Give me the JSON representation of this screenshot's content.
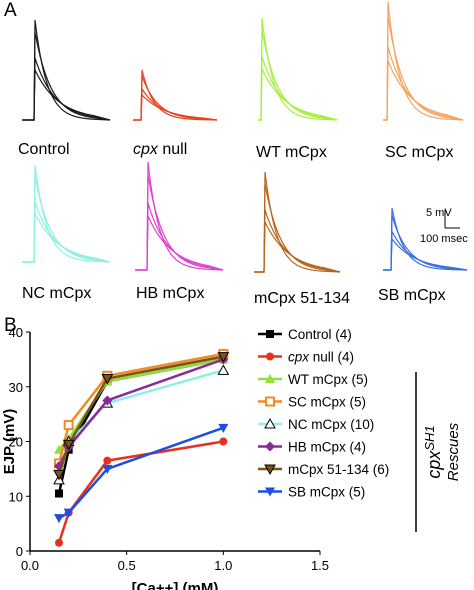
{
  "panelA": {
    "letter": "A",
    "traces": [
      {
        "label": "Control",
        "italic": false,
        "color": "#1a1a1a"
      },
      {
        "label": "cpx null",
        "italic_part": "cpx",
        "rest": " null",
        "color": "#e8401c"
      },
      {
        "label": "WT mCpx",
        "italic": false,
        "color": "#a6f03c"
      },
      {
        "label": "SC mCpx",
        "italic": false,
        "color": "#f4a460"
      },
      {
        "label": "NC mCpx",
        "italic": false,
        "color": "#8ff0e0"
      },
      {
        "label": "HB mCpx",
        "italic": false,
        "color": "#e040d0"
      },
      {
        "label": "mCpx 51-134",
        "italic": false,
        "color": "#b5651d"
      },
      {
        "label": "SB mCpx",
        "italic": false,
        "color": "#3a6fe0"
      }
    ],
    "scalebar": {
      "voltage": "5 mV",
      "time": "100 msec"
    }
  },
  "panelB": {
    "letter": "B"
  },
  "chart_data": {
    "type": "line",
    "xlabel": "[Ca++] (mM)",
    "ylabel": "EJP (mV)",
    "xlim": [
      0.0,
      1.5
    ],
    "ylim": [
      0,
      40
    ],
    "xticks": [
      "0.0",
      "0.5",
      "1.0",
      "1.5"
    ],
    "yticks": [
      "0",
      "10",
      "20",
      "30",
      "40"
    ],
    "x": [
      0.15,
      0.2,
      0.4,
      1.0
    ],
    "grid": false,
    "legend_position": "right",
    "legend_group_label": "cpxSH1",
    "legend_group_sub": "Rescues",
    "series": [
      {
        "name": "Control (4)",
        "color": "#000000",
        "marker": "square",
        "values": [
          10.5,
          18.5,
          31.0,
          35.0
        ]
      },
      {
        "name": "cpx null (4)",
        "color": "#e8301c",
        "marker": "circle",
        "values": [
          1.5,
          7.0,
          16.5,
          20.0
        ]
      },
      {
        "name": "WT mCpx (5)",
        "color": "#8fe03a",
        "marker": "triangle-up",
        "values": [
          18.5,
          20.5,
          31.0,
          35.0
        ]
      },
      {
        "name": "SC mCpx (5)",
        "color": "#f08c24",
        "marker": "square-open",
        "values": [
          16.0,
          23.0,
          32.0,
          36.0
        ]
      },
      {
        "name": "NC mCpx (10)",
        "color": "#8ff0e0",
        "marker": "triangle-open",
        "values": [
          13.0,
          20.0,
          27.0,
          33.0
        ]
      },
      {
        "name": "HB mCpx (4)",
        "color": "#8a2a9a",
        "marker": "diamond",
        "values": [
          15.5,
          19.0,
          27.5,
          35.0
        ]
      },
      {
        "name": "mCpx 51-134 (6)",
        "color": "#7a5318",
        "marker": "triangle-down",
        "values": [
          14.0,
          19.5,
          31.5,
          35.5
        ]
      },
      {
        "name": "SB mCpx (5)",
        "color": "#1f4de0",
        "marker": "triangle-down-solid",
        "values": [
          6.0,
          7.0,
          15.0,
          22.5
        ]
      }
    ]
  }
}
